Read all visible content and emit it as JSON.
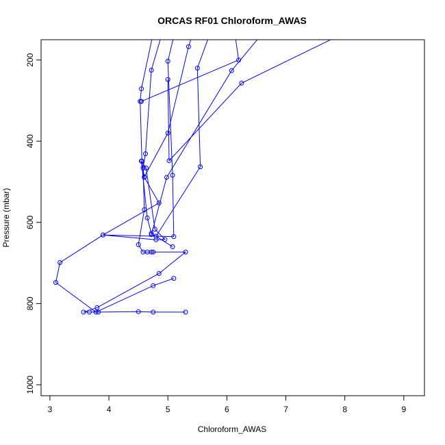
{
  "chart_data": {
    "type": "line",
    "title": "ORCAS RF01 Chloroform_AWAS",
    "xlabel": "Chloroform_AWAS",
    "ylabel": "Pressure (mbar)",
    "xlim": [
      2.85,
      9.35
    ],
    "ylim": [
      1027,
      150
    ],
    "y_inverted": true,
    "xticks": [
      3,
      4,
      5,
      6,
      7,
      8,
      9
    ],
    "yticks": [
      200,
      400,
      600,
      800,
      1000
    ],
    "grid": false,
    "legend": "none",
    "colors": {
      "series": "#0000ff",
      "frame": "#000000"
    },
    "series": [
      {
        "points": [
          [
            5.3,
            821
          ],
          [
            4.75,
            821
          ],
          [
            4.5,
            820
          ],
          [
            3.82,
            821
          ],
          [
            3.67,
            821
          ],
          [
            3.57,
            821
          ],
          [
            3.8,
            810
          ],
          [
            4.85,
            726
          ],
          [
            5.3,
            673
          ],
          [
            4.75,
            673
          ],
          [
            4.72,
            673
          ],
          [
            4.65,
            673
          ],
          [
            4.58,
            673
          ],
          [
            4.5,
            655
          ],
          [
            4.6,
            569
          ],
          [
            4.58,
            466
          ],
          [
            4.62,
            431
          ],
          [
            4.72,
            225
          ],
          [
            4.95,
            110
          ]
        ]
      },
      {
        "points": [
          [
            5.1,
            738
          ],
          [
            4.75,
            756
          ],
          [
            3.78,
            821
          ],
          [
            3.1,
            748
          ],
          [
            3.17,
            699
          ],
          [
            3.9,
            631
          ],
          [
            4.85,
            552
          ],
          [
            4.6,
            489
          ],
          [
            4.56,
            449
          ],
          [
            4.53,
            302
          ],
          [
            4.55,
            271
          ],
          [
            4.8,
            100
          ]
        ]
      },
      {
        "points": [
          [
            5.08,
            660
          ],
          [
            4.72,
            627
          ],
          [
            4.65,
            589
          ],
          [
            4.55,
            449
          ],
          [
            4.63,
            466
          ],
          [
            4.78,
            617
          ],
          [
            4.95,
            642
          ],
          [
            4.8,
            643
          ],
          [
            3.9,
            631
          ],
          [
            5.1,
            635
          ],
          [
            5.08,
            484
          ],
          [
            5.0,
            203
          ],
          [
            5.2,
            80
          ]
        ]
      },
      {
        "points": [
          [
            4.72,
            630
          ],
          [
            4.98,
            489
          ],
          [
            6.08,
            226
          ],
          [
            6.8,
            100
          ]
        ]
      },
      {
        "points": [
          [
            4.8,
            634
          ],
          [
            5.55,
            463
          ],
          [
            5.5,
            220
          ],
          [
            5.8,
            100
          ]
        ]
      },
      {
        "points": [
          [
            5.0,
            248
          ],
          [
            5.02,
            448
          ],
          [
            6.25,
            257
          ],
          [
            7.9,
            140
          ]
        ]
      },
      {
        "points": [
          [
            4.6,
            488
          ],
          [
            5.0,
            380
          ],
          [
            5.35,
            167
          ],
          [
            5.5,
            100
          ]
        ]
      },
      {
        "points": [
          [
            4.55,
            302
          ],
          [
            6.2,
            200
          ],
          [
            6.1,
            100
          ]
        ]
      }
    ]
  }
}
